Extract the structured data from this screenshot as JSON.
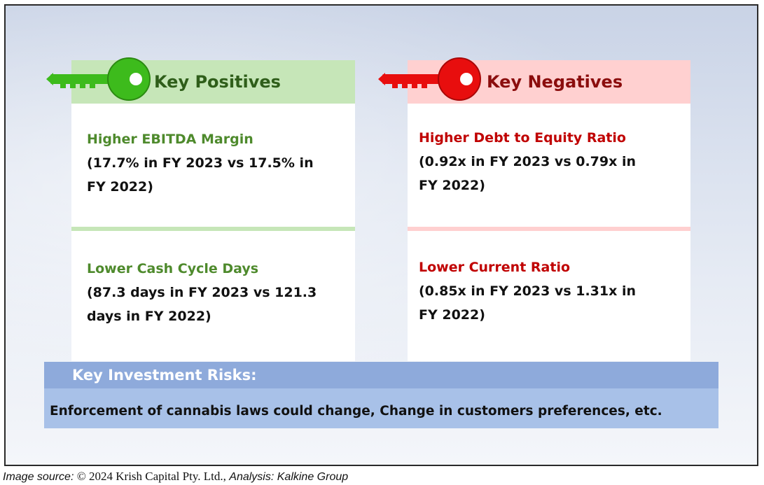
{
  "positives": {
    "heading": "Key Positives",
    "accent_color": "#4e8a2c",
    "key_color": "#3dbb1c",
    "items": [
      {
        "title": "Higher EBITDA Margin",
        "detail": "(17.7% in FY 2023 vs 17.5% in FY 2022)"
      },
      {
        "title": "Lower Cash Cycle Days",
        "detail": "(87.3 days in FY 2023 vs 121.3 days in FY 2022)"
      }
    ]
  },
  "negatives": {
    "heading": "Key Negatives",
    "accent_color": "#c00000",
    "key_color": "#e80e0e",
    "items": [
      {
        "title": "Higher Debt to Equity Ratio",
        "detail": "(0.92x in FY 2023 vs 0.79x in FY 2022)"
      },
      {
        "title": "Lower Current Ratio",
        "detail": "(0.85x in FY 2023 vs 1.31x in FY 2022)"
      }
    ]
  },
  "risks": {
    "heading": "Key Investment Risks:",
    "text": "Enforcement of cannabis laws could change, Change in customers preferences, etc."
  },
  "source": {
    "label": "Image source:",
    "copyright": "© 2024 Krish Capital Pty. Ltd.,",
    "analysis": "Analysis: Kalkine Group"
  }
}
